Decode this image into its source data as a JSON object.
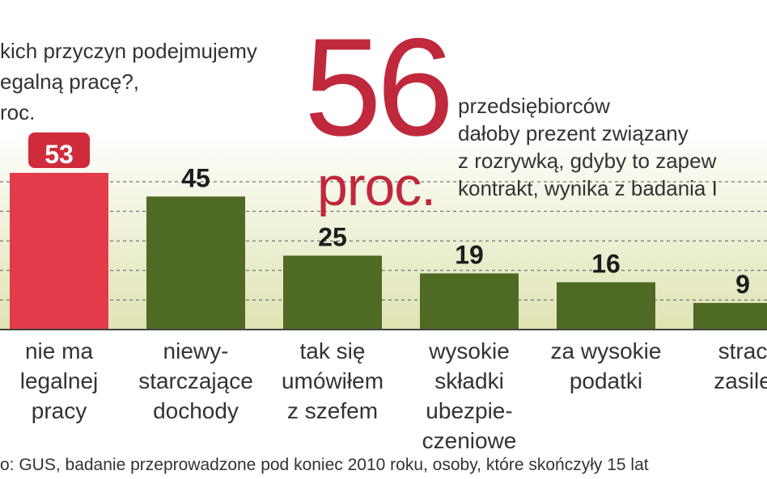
{
  "question": {
    "lines": [
      "kich przyczyn podejmujemy",
      "egalną pracę?,",
      "roc."
    ]
  },
  "highlight": {
    "number": "56",
    "unit": "proc.",
    "text_lines": [
      "przedsiębiorców",
      "dałoby prezent związany",
      "z rozrywką, gdyby to zapew",
      "kontrakt, wynika z badania I"
    ]
  },
  "source": "o: GUS, badanie przeprowadzone pod koniec 2010 roku, osoby, które skończyły 15 lat",
  "colors": {
    "highlight_bar": "#e23b4a",
    "bar": "#4f6a22",
    "badge": "#d02b3a",
    "accent_text": "#c0283b",
    "background_gradient_top": "#ffffff",
    "background_gradient_bottom": "#dfe3b2"
  },
  "chart_data": {
    "type": "bar",
    "title": "",
    "xlabel": "",
    "ylabel": "",
    "ylim": [
      0,
      60
    ],
    "grid": true,
    "categories": [
      "nie ma legalnej pracy",
      "niewy-starczające dochody",
      "tak się umówiłem z szefem",
      "wysokie składki ubezpie-czeniowe",
      "za wysokie podatki",
      "strac zasile"
    ],
    "category_lines": [
      [
        "nie ma",
        "legalnej",
        "pracy"
      ],
      [
        "niewy-",
        "starczające",
        "dochody"
      ],
      [
        "tak się",
        "umówiłem",
        "z szefem"
      ],
      [
        "wysokie",
        "składki",
        "ubezpie-",
        "czeniowe"
      ],
      [
        "za wysokie",
        "podatki"
      ],
      [
        "strac",
        "zasile"
      ]
    ],
    "values": [
      53,
      45,
      25,
      19,
      16,
      9
    ],
    "highlight_index": 0
  }
}
